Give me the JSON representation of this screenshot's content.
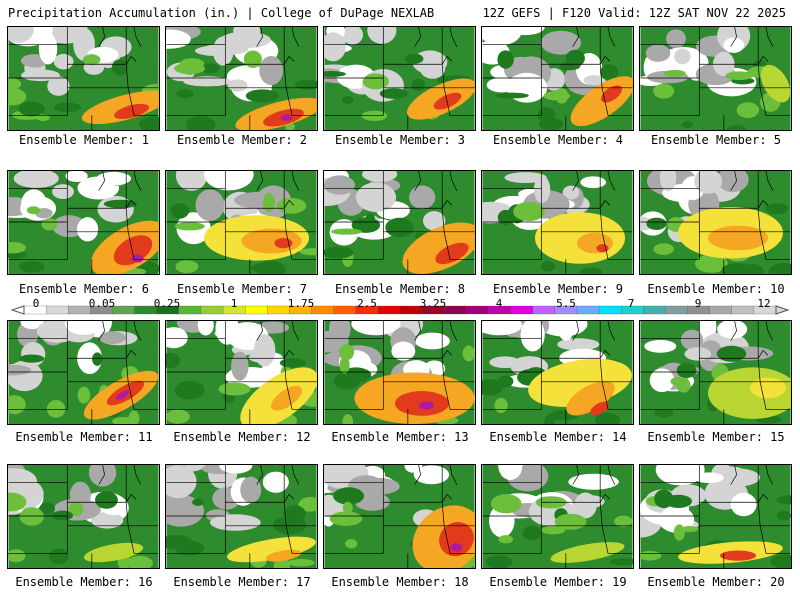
{
  "header": {
    "title_left": "Precipitation Accumulation (in.) | College of DuPage NEXLAB",
    "title_right": "12Z GEFS | F120 Valid: 12Z SAT NOV 22 2025"
  },
  "panels": [
    {
      "label": "Ensemble Member: 1"
    },
    {
      "label": "Ensemble Member: 2"
    },
    {
      "label": "Ensemble Member: 3"
    },
    {
      "label": "Ensemble Member: 4"
    },
    {
      "label": "Ensemble Member: 5"
    },
    {
      "label": "Ensemble Member: 6"
    },
    {
      "label": "Ensemble Member: 7"
    },
    {
      "label": "Ensemble Member: 8"
    },
    {
      "label": "Ensemble Member: 9"
    },
    {
      "label": "Ensemble Member: 10"
    },
    {
      "label": "Ensemble Member: 11"
    },
    {
      "label": "Ensemble Member: 12"
    },
    {
      "label": "Ensemble Member: 13"
    },
    {
      "label": "Ensemble Member: 14"
    },
    {
      "label": "Ensemble Member: 15"
    },
    {
      "label": "Ensemble Member: 16"
    },
    {
      "label": "Ensemble Member: 17"
    },
    {
      "label": "Ensemble Member: 18"
    },
    {
      "label": "Ensemble Member: 19"
    },
    {
      "label": "Ensemble Member: 20"
    }
  ],
  "colorbar": {
    "labels": [
      "0",
      "0.05",
      "0.25",
      "1",
      "1.75",
      "2.5",
      "3.25",
      "4",
      "5.5",
      "7",
      "9",
      "12"
    ],
    "colors": [
      "#ffffff",
      "#d9d9d9",
      "#b3b3b3",
      "#8c8c8c",
      "#5fa34d",
      "#2f8a2f",
      "#1f6e1f",
      "#56b82e",
      "#9acd32",
      "#d4e62a",
      "#ffff00",
      "#ffd700",
      "#ffb000",
      "#ff8c00",
      "#ff5f00",
      "#ff2a00",
      "#e60000",
      "#c00000",
      "#a00028",
      "#8b0050",
      "#a0007a",
      "#c000b0",
      "#e000e0",
      "#c060ff",
      "#9f8cff",
      "#6fa8ff",
      "#00e0ff",
      "#20d0d0",
      "#40b0b0",
      "#80a0a0",
      "#909090",
      "#a8a8a8",
      "#c0c0c0",
      "#d8d8d8"
    ]
  },
  "palette": {
    "white": "#ffffff",
    "light_gray": "#d4d4d4",
    "gray": "#a9a9a9",
    "dark_green": "#1f7a1f",
    "green": "#2e8b2e",
    "light_green": "#6bbf3b",
    "yellow_green": "#b9d633",
    "yellow": "#f4e23a",
    "orange": "#f5a623",
    "red": "#e23a1c",
    "dark_red": "#a8102a",
    "purple": "#b01aa0"
  }
}
